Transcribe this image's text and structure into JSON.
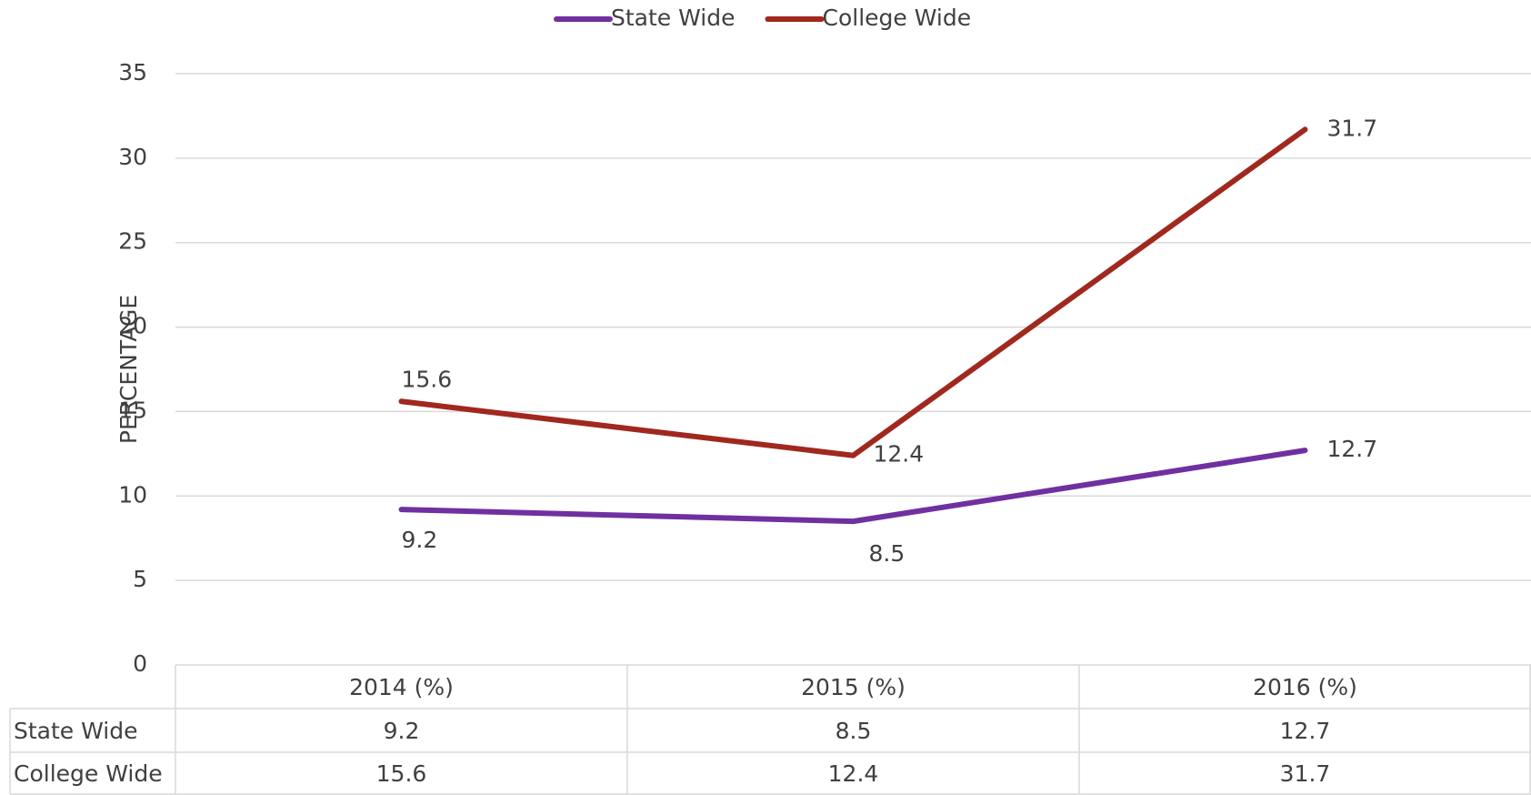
{
  "chart_data": {
    "type": "line",
    "y_label": "PERCENTAGE",
    "categories": [
      "2014 (%)",
      "2015 (%)",
      "2016 (%)"
    ],
    "series": [
      {
        "name": "State Wide",
        "color": "#7030a0",
        "values": [
          9.2,
          8.5,
          12.7
        ]
      },
      {
        "name": "College Wide",
        "color": "#a0281e",
        "values": [
          15.6,
          12.4,
          31.7
        ]
      }
    ],
    "ylim": [
      0,
      35
    ],
    "yticks": [
      0,
      5,
      10,
      15,
      20,
      25,
      30,
      35
    ],
    "grid": true,
    "legend": "top",
    "data_table": true
  }
}
